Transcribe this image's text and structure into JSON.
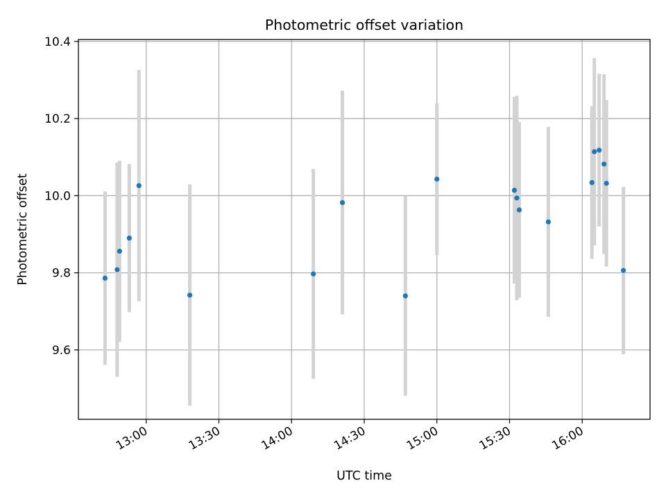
{
  "chart_data": {
    "type": "scatter",
    "title": "Photometric offset variation",
    "xlabel": "UTC time",
    "ylabel": "Photometric offset",
    "x_is_time": true,
    "xlim": [
      "12:32",
      "16:28"
    ],
    "ylim": [
      9.42,
      10.405
    ],
    "grid": true,
    "x_ticks": [
      "13:00",
      "13:30",
      "14:00",
      "14:30",
      "15:00",
      "15:30",
      "16:00"
    ],
    "y_ticks": [
      9.6,
      9.8,
      10.0,
      10.2,
      10.4
    ],
    "y_tick_labels": [
      "9.6",
      "9.8",
      "10.0",
      "10.2",
      "10.4"
    ],
    "marker_color": "#1f77b4",
    "errorbar_color": "#d3d3d3",
    "grid_color": "#b0b0b0",
    "points": [
      {
        "time": "12:43",
        "y": 9.786,
        "yerr": 0.225
      },
      {
        "time": "12:48",
        "y": 9.808,
        "yerr": 0.278
      },
      {
        "time": "12:49",
        "y": 9.856,
        "yerr": 0.235
      },
      {
        "time": "12:53",
        "y": 9.89,
        "yerr": 0.192
      },
      {
        "time": "12:57",
        "y": 10.026,
        "yerr": 0.3
      },
      {
        "time": "13:18",
        "y": 9.742,
        "yerr": 0.287
      },
      {
        "time": "14:09",
        "y": 9.797,
        "yerr": 0.272
      },
      {
        "time": "14:21",
        "y": 9.982,
        "yerr": 0.29
      },
      {
        "time": "14:47",
        "y": 9.74,
        "yerr": 0.259
      },
      {
        "time": "15:00",
        "y": 10.043,
        "yerr": 0.197
      },
      {
        "time": "15:32",
        "y": 10.014,
        "yerr": 0.242
      },
      {
        "time": "15:33",
        "y": 9.994,
        "yerr": 0.265
      },
      {
        "time": "15:34",
        "y": 9.963,
        "yerr": 0.228
      },
      {
        "time": "15:46",
        "y": 9.932,
        "yerr": 0.246
      },
      {
        "time": "16:04",
        "y": 10.034,
        "yerr": 0.198
      },
      {
        "time": "16:05",
        "y": 10.114,
        "yerr": 0.243
      },
      {
        "time": "16:07",
        "y": 10.118,
        "yerr": 0.198
      },
      {
        "time": "16:09",
        "y": 10.082,
        "yerr": 0.233
      },
      {
        "time": "16:10",
        "y": 10.032,
        "yerr": 0.216
      },
      {
        "time": "16:17",
        "y": 9.806,
        "yerr": 0.217
      }
    ]
  }
}
